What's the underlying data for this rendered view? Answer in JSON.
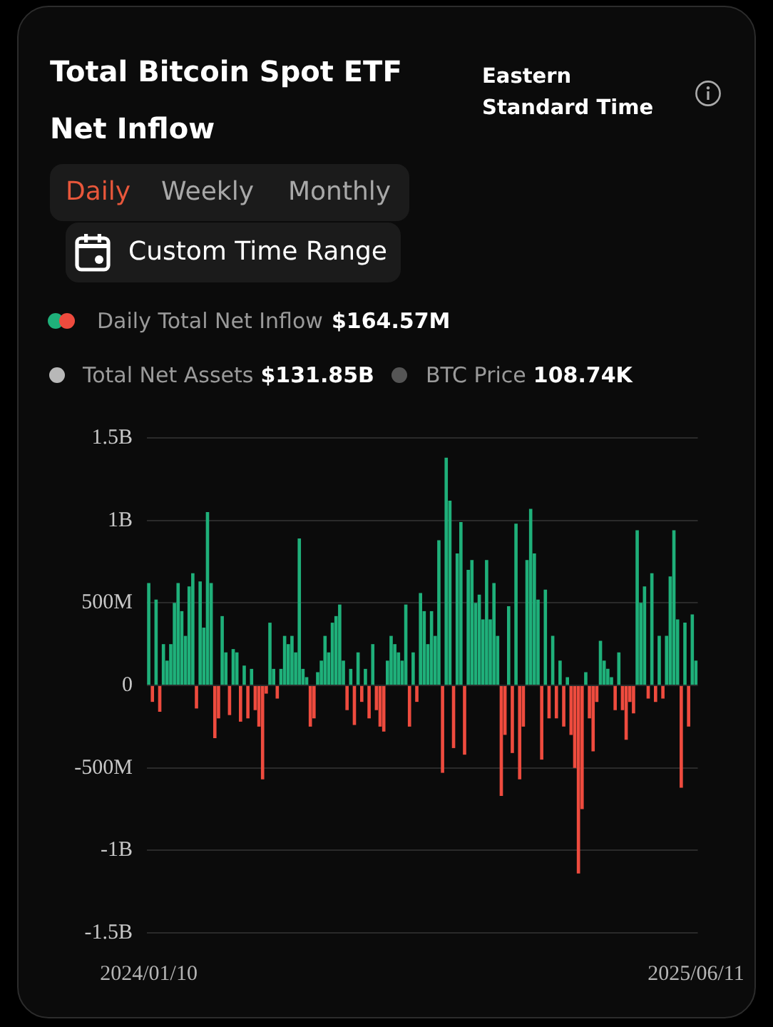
{
  "chart_data": {
    "type": "bar",
    "title": "Total Bitcoin Spot ETF Net Inflow",
    "annotations": [
      "Eastern Standard Time",
      "Daily",
      "Weekly",
      "Monthly",
      "Custom Time Range",
      "$164.57M",
      "Total Net Assets",
      "$131.85B",
      "BTC Price",
      "108.74K"
    ],
    "categories": [
      "2024/01/10",
      null,
      null,
      null,
      null,
      null,
      null,
      null,
      null,
      null,
      null,
      null,
      null,
      null,
      null,
      null,
      null,
      null,
      null,
      null,
      null,
      null,
      null,
      null,
      null,
      null,
      null,
      null,
      null,
      null,
      null,
      null,
      null,
      null,
      null,
      null,
      null,
      null,
      null,
      null,
      null,
      null,
      null,
      null,
      null,
      null,
      null,
      null,
      null,
      null,
      null,
      null,
      null,
      null,
      null,
      null,
      null,
      null,
      null,
      null,
      null,
      null,
      null,
      null,
      null,
      null,
      null,
      null,
      null,
      null,
      null,
      null,
      null,
      null,
      null,
      null,
      null,
      null,
      null,
      null,
      null,
      null,
      null,
      null,
      null,
      null,
      null,
      null,
      null,
      null,
      null,
      null,
      null,
      null,
      null,
      null,
      null,
      null,
      null,
      null,
      null,
      null,
      null,
      null,
      null,
      null,
      null,
      null,
      null,
      null,
      null,
      null,
      null,
      null,
      null,
      null,
      null,
      null,
      null,
      null,
      null,
      null,
      null,
      null,
      null,
      null,
      null,
      null,
      null,
      null,
      null,
      null,
      null,
      null,
      null,
      null,
      null,
      null,
      null,
      null,
      null,
      null,
      null,
      null,
      null,
      null,
      null,
      null,
      null,
      "2025/06/11"
    ],
    "series": [
      {
        "name": "Daily Total Net Inflow",
        "color": "#1fb07a",
        "values": [
          620000000,
          -100000000,
          520000000,
          -160000000,
          250000000,
          150000000,
          250000000,
          500000000,
          620000000,
          450000000,
          300000000,
          600000000,
          680000000,
          -140000000,
          630000000,
          350000000,
          1050000000,
          620000000,
          -320000000,
          -200000000,
          420000000,
          200000000,
          -180000000,
          220000000,
          200000000,
          -220000000,
          120000000,
          -200000000,
          100000000,
          -150000000,
          -250000000,
          -570000000,
          -50000000,
          380000000,
          100000000,
          -80000000,
          100000000,
          300000000,
          250000000,
          300000000,
          200000000,
          890000000,
          100000000,
          50000000,
          -250000000,
          -200000000,
          80000000,
          150000000,
          300000000,
          200000000,
          380000000,
          420000000,
          490000000,
          150000000,
          -150000000,
          100000000,
          -240000000,
          200000000,
          -100000000,
          100000000,
          -200000000,
          250000000,
          -150000000,
          -250000000,
          -280000000,
          150000000,
          300000000,
          250000000,
          200000000,
          150000000,
          490000000,
          -250000000,
          200000000,
          -100000000,
          560000000,
          450000000,
          250000000,
          450000000,
          300000000,
          880000000,
          -530000000,
          1380000000,
          1120000000,
          -380000000,
          800000000,
          990000000,
          -420000000,
          700000000,
          760000000,
          500000000,
          550000000,
          400000000,
          760000000,
          400000000,
          620000000,
          300000000,
          -670000000,
          -300000000,
          480000000,
          -410000000,
          980000000,
          -570000000,
          -250000000,
          760000000,
          1070000000,
          800000000,
          520000000,
          -450000000,
          580000000,
          -200000000,
          300000000,
          -200000000,
          150000000,
          -250000000,
          50000000,
          -300000000,
          -500000000,
          -1140000000,
          -750000000,
          80000000,
          -200000000,
          -400000000,
          -100000000,
          270000000,
          150000000,
          100000000,
          50000000,
          -150000000,
          200000000,
          -150000000,
          -330000000,
          -100000000,
          -170000000,
          940000000,
          500000000,
          600000000,
          -80000000,
          680000000,
          -100000000,
          300000000,
          -80000000,
          300000000,
          660000000,
          940000000,
          400000000,
          -620000000,
          380000000,
          -250000000,
          430000000,
          150000000
        ],
        "colors": [
          "#1fb07a",
          "#ee4b3e",
          "#1fb07a",
          "#ee4b3e",
          "#1fb07a",
          "#1fb07a",
          "#1fb07a",
          "#1fb07a",
          "#1fb07a",
          "#1fb07a",
          "#1fb07a",
          "#1fb07a",
          "#1fb07a",
          "#ee4b3e",
          "#1fb07a",
          "#1fb07a",
          "#1fb07a",
          "#1fb07a",
          "#ee4b3e",
          "#ee4b3e",
          "#1fb07a",
          "#1fb07a",
          "#ee4b3e",
          "#1fb07a",
          "#1fb07a",
          "#ee4b3e",
          "#1fb07a",
          "#ee4b3e",
          "#1fb07a",
          "#ee4b3e",
          "#ee4b3e",
          "#ee4b3e",
          "#ee4b3e",
          "#1fb07a",
          "#1fb07a",
          "#ee4b3e",
          "#1fb07a",
          "#1fb07a",
          "#1fb07a",
          "#1fb07a",
          "#1fb07a",
          "#1fb07a",
          "#1fb07a",
          "#1fb07a",
          "#ee4b3e",
          "#ee4b3e",
          "#1fb07a",
          "#1fb07a",
          "#1fb07a",
          "#1fb07a",
          "#1fb07a",
          "#1fb07a",
          "#1fb07a",
          "#1fb07a",
          "#ee4b3e",
          "#1fb07a",
          "#ee4b3e",
          "#1fb07a",
          "#ee4b3e",
          "#1fb07a",
          "#ee4b3e",
          "#1fb07a",
          "#ee4b3e",
          "#ee4b3e",
          "#ee4b3e",
          "#1fb07a",
          "#1fb07a",
          "#1fb07a",
          "#1fb07a",
          "#1fb07a",
          "#1fb07a",
          "#ee4b3e",
          "#1fb07a",
          "#ee4b3e",
          "#1fb07a",
          "#1fb07a",
          "#1fb07a",
          "#1fb07a",
          "#1fb07a",
          "#1fb07a",
          "#ee4b3e",
          "#1fb07a",
          "#1fb07a",
          "#ee4b3e",
          "#1fb07a",
          "#1fb07a",
          "#ee4b3e",
          "#1fb07a",
          "#1fb07a",
          "#1fb07a",
          "#1fb07a",
          "#1fb07a",
          "#1fb07a",
          "#1fb07a",
          "#1fb07a",
          "#1fb07a",
          "#ee4b3e",
          "#ee4b3e",
          "#1fb07a",
          "#ee4b3e",
          "#1fb07a",
          "#ee4b3e",
          "#ee4b3e",
          "#1fb07a",
          "#1fb07a",
          "#1fb07a",
          "#1fb07a",
          "#ee4b3e",
          "#1fb07a",
          "#ee4b3e",
          "#1fb07a",
          "#ee4b3e",
          "#1fb07a",
          "#ee4b3e",
          "#1fb07a",
          "#ee4b3e",
          "#ee4b3e",
          "#ee4b3e",
          "#ee4b3e",
          "#1fb07a",
          "#ee4b3e",
          "#ee4b3e",
          "#ee4b3e",
          "#1fb07a",
          "#1fb07a",
          "#1fb07a",
          "#1fb07a",
          "#ee4b3e",
          "#1fb07a",
          "#ee4b3e",
          "#ee4b3e",
          "#ee4b3e",
          "#ee4b3e",
          "#1fb07a",
          "#1fb07a",
          "#1fb07a",
          "#ee4b3e",
          "#1fb07a",
          "#ee4b3e",
          "#1fb07a",
          "#ee4b3e",
          "#1fb07a",
          "#1fb07a",
          "#1fb07a",
          "#1fb07a",
          "#ee4b3e",
          "#1fb07a",
          "#ee4b3e",
          "#1fb07a",
          "#1fb07a"
        ]
      }
    ],
    "ylim": [
      -1500000000,
      1500000000
    ],
    "yticks": [
      {
        "value": -1500000000,
        "label": "-1.5B"
      },
      {
        "value": -1000000000,
        "label": "-1B"
      },
      {
        "value": -500000000,
        "label": "-500M"
      },
      0,
      {
        "value": 500000000,
        "label": "500M"
      },
      {
        "value": 1000000000,
        "label": "1B"
      },
      {
        "value": 1500000000,
        "label": "1.5B"
      }
    ],
    "grid": "y",
    "legend": "top"
  }
}
